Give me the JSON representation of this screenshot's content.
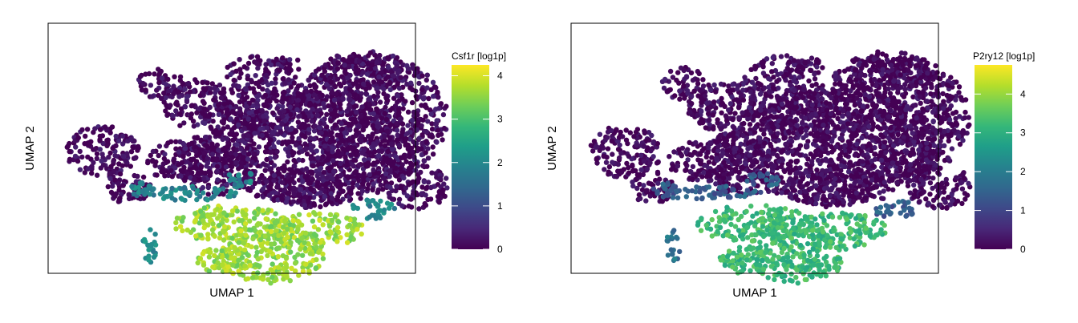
{
  "colors": {
    "viridis": [
      "#440154",
      "#482878",
      "#3e4989",
      "#31688e",
      "#26828e",
      "#1f9e89",
      "#35b779",
      "#6ece58",
      "#b5de2b",
      "#fde725"
    ],
    "frame": "#000000",
    "background": "#ffffff"
  },
  "chart_data": [
    {
      "type": "scatter",
      "title": "",
      "xlabel": "UMAP 1",
      "ylabel": "UMAP 2",
      "grid": false,
      "color_encoding": "gene expression",
      "legend": {
        "title": "Csf1r [log1p]",
        "placement": "right",
        "min": 0,
        "max": 4.25,
        "ticks": [
          0,
          1,
          2,
          3,
          4
        ],
        "tick_labels": [
          "0",
          "1",
          "2",
          "3",
          "4"
        ]
      },
      "regions": [
        {
          "name": "main-cluster",
          "expression": 0.05
        },
        {
          "name": "left-cluster",
          "expression": 0.05
        },
        {
          "name": "middle-strip",
          "expression": 1.9
        },
        {
          "name": "expressing-cluster",
          "expression": 3.6
        },
        {
          "name": "small-satellite",
          "expression": 2.1
        }
      ]
    },
    {
      "type": "scatter",
      "title": "",
      "xlabel": "UMAP 1",
      "ylabel": "UMAP 2",
      "grid": false,
      "color_encoding": "gene expression",
      "legend": {
        "title": "P2ry12 [log1p]",
        "placement": "right",
        "min": 0,
        "max": 4.75,
        "ticks": [
          0,
          1,
          2,
          3,
          4
        ],
        "tick_labels": [
          "0",
          "1",
          "2",
          "3",
          "4"
        ]
      },
      "regions": [
        {
          "name": "main-cluster",
          "expression": 0.05
        },
        {
          "name": "left-cluster",
          "expression": 0.05
        },
        {
          "name": "middle-strip",
          "expression": 1.4
        },
        {
          "name": "expressing-cluster",
          "expression": 3.2
        },
        {
          "name": "small-satellite",
          "expression": 1.8
        }
      ]
    }
  ]
}
